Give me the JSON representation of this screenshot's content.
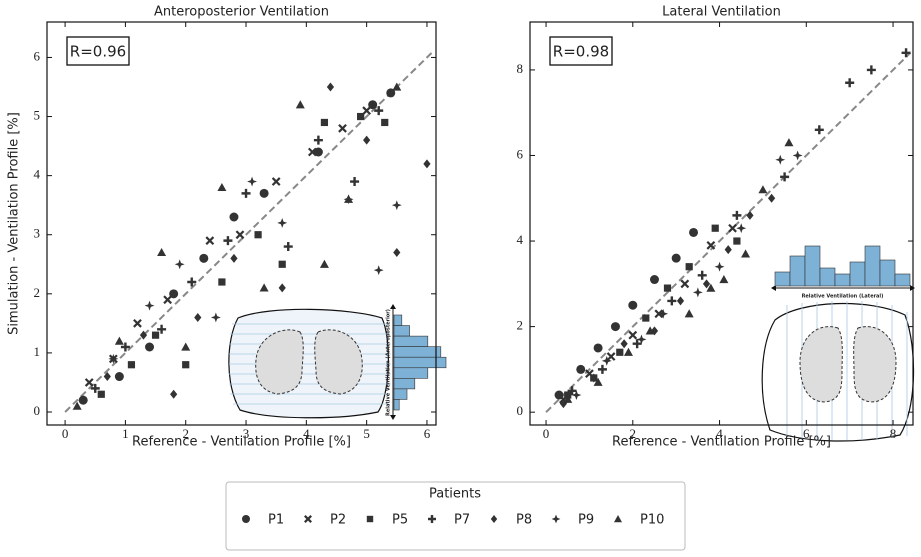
{
  "chart_data": [
    {
      "type": "scatter",
      "title": "Anteroposterior Ventilation",
      "x_label": "Reference - Ventilation Profile [%]",
      "y_label": "Simulation - Ventilation Profile [%]",
      "annotation": "R=0.96",
      "legend_title": "Patients",
      "xlim": [
        -0.3,
        6.15
      ],
      "ylim": [
        -0.22,
        6.6
      ],
      "xticks": [
        0,
        1,
        2,
        3,
        4,
        5,
        6
      ],
      "yticks": [
        0,
        1,
        2,
        3,
        4,
        5,
        6
      ],
      "identity_line": {
        "x": [
          0,
          6.1
        ],
        "values": [
          0,
          6.1
        ],
        "color": "#888888"
      },
      "inset": {
        "label": "Relative Ventilation (Anteroposterior)",
        "color": "#7eb1d6",
        "values": [
          0.15,
          0.3,
          0.65,
          0.9,
          1.0,
          0.65,
          0.4,
          0.25,
          0.1
        ]
      },
      "series": [
        {
          "name": "P1",
          "marker": "circle",
          "color": "#333333",
          "x": [
            0.3,
            0.9,
            1.4,
            1.8,
            2.3,
            2.8,
            3.3,
            4.2,
            5.1,
            5.4
          ],
          "values": [
            0.2,
            0.6,
            1.1,
            2.0,
            2.6,
            3.3,
            3.7,
            4.4,
            5.2,
            5.4
          ]
        },
        {
          "name": "P2",
          "marker": "x",
          "color": "#333333",
          "x": [
            0.4,
            0.8,
            1.2,
            1.7,
            2.4,
            2.9,
            3.5,
            4.1,
            4.6,
            5.0
          ],
          "values": [
            0.5,
            0.9,
            1.5,
            1.9,
            2.9,
            3.0,
            3.9,
            4.4,
            4.8,
            5.1
          ]
        },
        {
          "name": "P5",
          "marker": "square",
          "color": "#333333",
          "x": [
            0.6,
            1.1,
            1.5,
            2.0,
            2.6,
            3.2,
            3.6,
            4.3,
            4.9,
            5.3
          ],
          "values": [
            0.3,
            0.8,
            1.3,
            0.8,
            2.2,
            3.0,
            2.5,
            4.9,
            5.0,
            4.9
          ]
        },
        {
          "name": "P7",
          "marker": "plus",
          "color": "#333333",
          "x": [
            0.5,
            1.0,
            1.6,
            2.1,
            2.7,
            3.0,
            3.7,
            4.2,
            4.8,
            5.2
          ],
          "values": [
            0.4,
            1.1,
            1.4,
            2.2,
            2.9,
            3.7,
            2.8,
            4.6,
            3.9,
            5.1
          ]
        },
        {
          "name": "P8",
          "marker": "diamond",
          "color": "#333333",
          "x": [
            0.7,
            1.3,
            1.8,
            2.2,
            2.8,
            3.6,
            4.4,
            5.0,
            5.5,
            6.0
          ],
          "values": [
            0.6,
            1.3,
            0.3,
            1.6,
            2.6,
            2.1,
            5.5,
            4.6,
            2.7,
            4.2
          ]
        },
        {
          "name": "P9",
          "marker": "star",
          "color": "#333333",
          "x": [
            0.3,
            0.8,
            1.4,
            1.9,
            2.5,
            3.1,
            3.6,
            4.7,
            5.2,
            5.5
          ],
          "values": [
            0.2,
            0.9,
            1.8,
            2.5,
            1.6,
            3.9,
            3.2,
            3.6,
            2.4,
            3.5
          ]
        },
        {
          "name": "P10",
          "marker": "triangle",
          "color": "#333333",
          "x": [
            0.2,
            0.9,
            1.6,
            2.0,
            2.6,
            3.3,
            3.9,
            4.3,
            4.7,
            5.5
          ],
          "values": [
            0.1,
            1.2,
            2.7,
            1.1,
            3.8,
            2.1,
            5.2,
            2.5,
            3.6,
            5.5
          ]
        }
      ]
    },
    {
      "type": "scatter",
      "title": "Lateral Ventilation",
      "x_label": "Reference - Ventilation Profile [%]",
      "annotation": "R=0.98",
      "xlim": [
        -0.37,
        8.46
      ],
      "ylim": [
        -0.3,
        9.12
      ],
      "xticks": [
        0,
        2,
        4,
        6,
        8
      ],
      "yticks": [
        0,
        2,
        4,
        6,
        8
      ],
      "identity_line": {
        "x": [
          0,
          8.4
        ],
        "values": [
          0,
          8.4
        ],
        "color": "#888888"
      },
      "inset": {
        "label": "Relative Ventilation (Lateral)",
        "color": "#7eb1d6",
        "values": [
          0.35,
          0.75,
          1.0,
          0.45,
          0.3,
          0.6,
          1.0,
          0.65,
          0.3
        ]
      },
      "series": [
        {
          "name": "P1",
          "marker": "circle",
          "color": "#333333",
          "x": [
            0.3,
            0.8,
            1.2,
            1.6,
            2.0,
            2.5,
            3.0,
            3.4
          ],
          "values": [
            0.4,
            1.0,
            1.5,
            2.0,
            2.5,
            3.1,
            3.6,
            4.2
          ]
        },
        {
          "name": "P2",
          "marker": "x",
          "color": "#333333",
          "x": [
            0.4,
            1.0,
            1.5,
            2.0,
            2.6,
            3.2,
            3.8,
            4.3
          ],
          "values": [
            0.3,
            0.9,
            1.3,
            1.8,
            2.3,
            3.0,
            3.9,
            4.3
          ]
        },
        {
          "name": "P5",
          "marker": "square",
          "color": "#333333",
          "x": [
            0.5,
            1.1,
            1.7,
            2.3,
            2.8,
            3.3,
            3.9,
            4.4
          ],
          "values": [
            0.4,
            0.8,
            1.4,
            2.2,
            2.9,
            3.4,
            4.3,
            4.0
          ]
        },
        {
          "name": "P7",
          "marker": "plus",
          "color": "#333333",
          "x": [
            0.6,
            1.3,
            2.1,
            2.9,
            3.6,
            4.4,
            5.5,
            6.3,
            7.0,
            7.5,
            8.3
          ],
          "values": [
            0.5,
            1.0,
            1.6,
            2.6,
            3.2,
            4.6,
            5.5,
            6.6,
            7.7,
            8.0,
            8.4
          ]
        },
        {
          "name": "P8",
          "marker": "diamond",
          "color": "#333333",
          "x": [
            0.4,
            1.1,
            1.8,
            2.5,
            3.1,
            3.7,
            4.2,
            4.7,
            5.2
          ],
          "values": [
            0.2,
            0.8,
            1.6,
            1.9,
            2.6,
            3.0,
            3.8,
            4.6,
            5.0
          ]
        },
        {
          "name": "P9",
          "marker": "star",
          "color": "#333333",
          "x": [
            0.7,
            1.4,
            2.2,
            2.7,
            3.5,
            4.0,
            4.5,
            5.4,
            5.8
          ],
          "values": [
            0.4,
            1.2,
            1.7,
            2.3,
            2.8,
            3.4,
            4.3,
            5.9,
            6.0
          ]
        },
        {
          "name": "P10",
          "marker": "triangle",
          "color": "#333333",
          "x": [
            0.5,
            1.2,
            1.9,
            2.4,
            3.3,
            3.8,
            4.1,
            4.6,
            5.0,
            5.6
          ],
          "values": [
            0.3,
            0.7,
            1.4,
            1.9,
            2.3,
            2.9,
            3.1,
            3.7,
            5.2,
            6.3
          ]
        }
      ]
    }
  ]
}
